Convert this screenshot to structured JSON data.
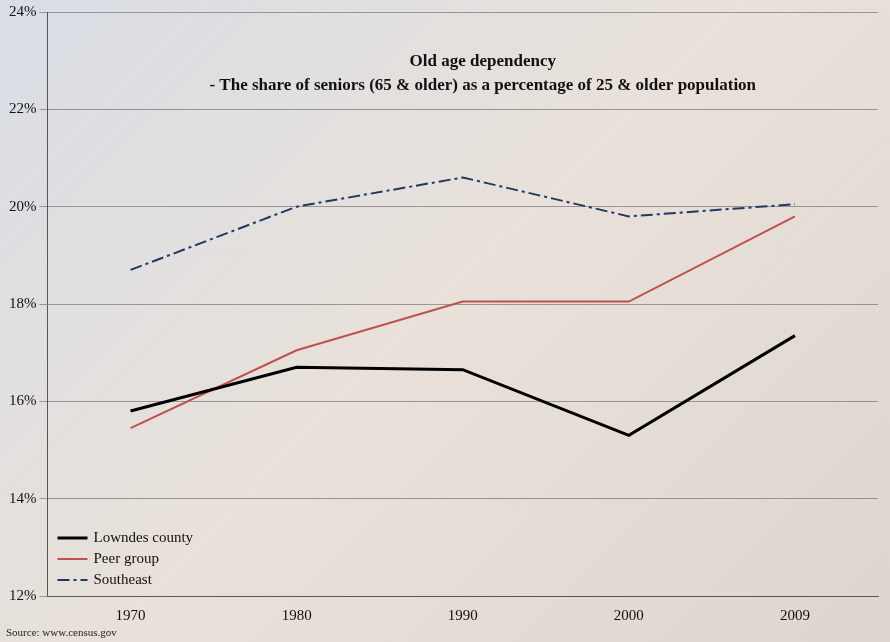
{
  "chart_data": {
    "type": "line",
    "title": "Old age dependency",
    "subtitle": "- The share of seniors (65 & older) as a percentage of 25 & older population",
    "annotations": [
      "Source: www.census.gov"
    ],
    "categories": [
      "1970",
      "1980",
      "1990",
      "2000",
      "2009"
    ],
    "series": [
      {
        "name": "Lowndes county",
        "color": "#000000",
        "line_style": "solid",
        "values": [
          15.8,
          16.7,
          16.65,
          15.3,
          17.35
        ]
      },
      {
        "name": "Peer group",
        "color": "#c0504d",
        "line_style": "solid",
        "values": [
          15.45,
          17.05,
          18.05,
          18.05,
          19.8
        ]
      },
      {
        "name": "Southeast",
        "color": "#1f3864",
        "line_style": "dashdot",
        "values": [
          18.7,
          20.0,
          20.6,
          19.8,
          20.05
        ]
      }
    ],
    "ylim": [
      12,
      24
    ],
    "yticks": [
      {
        "value": 12,
        "label": "12%"
      },
      {
        "value": 14,
        "label": "14%"
      },
      {
        "value": 16,
        "label": "16%"
      },
      {
        "value": 18,
        "label": "18%"
      },
      {
        "value": 20,
        "label": "20%"
      },
      {
        "value": 22,
        "label": "22%"
      },
      {
        "value": 24,
        "label": "24%"
      }
    ],
    "grid": true,
    "legend": "lower left"
  }
}
